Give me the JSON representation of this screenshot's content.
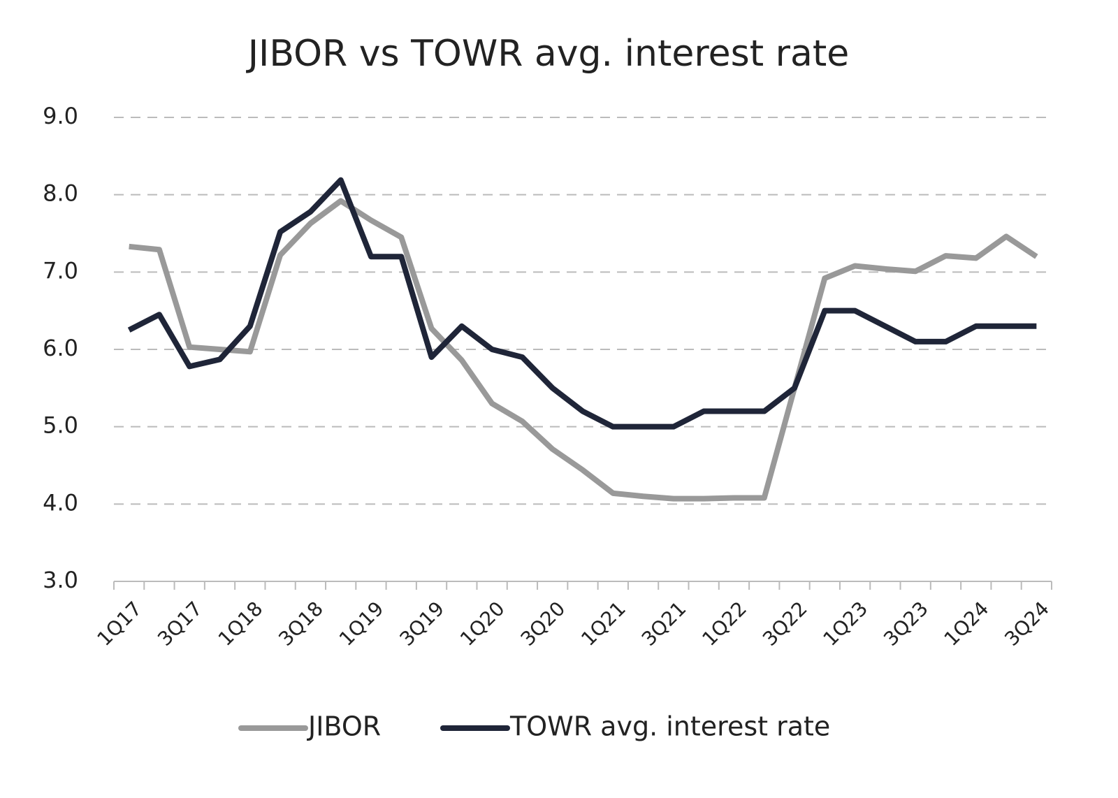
{
  "chart_data": {
    "type": "line",
    "title": "JIBOR vs TOWR avg. interest rate",
    "categories": [
      "1Q17",
      null,
      "3Q17",
      null,
      "1Q18",
      null,
      "3Q18",
      null,
      "1Q19",
      null,
      "3Q19",
      null,
      "1Q20",
      null,
      "3Q20",
      null,
      "1Q21",
      null,
      "3Q21",
      null,
      "1Q22",
      null,
      "3Q22",
      null,
      "1Q23",
      null,
      "3Q23",
      null,
      "1Q24",
      null,
      "3Q24"
    ],
    "series": [
      {
        "name": "JIBOR",
        "color": "#999999",
        "values": [
          7.33,
          7.29,
          6.03,
          6.0,
          5.97,
          7.22,
          7.63,
          7.92,
          7.67,
          7.45,
          6.27,
          5.86,
          5.3,
          5.07,
          4.71,
          4.44,
          4.14,
          4.1,
          4.07,
          4.07,
          4.08,
          4.08,
          5.5,
          6.92,
          7.08,
          7.04,
          7.01,
          7.21,
          7.18,
          7.46,
          7.2
        ]
      },
      {
        "name": "TOWR avg. interest rate",
        "color": "#1f2538",
        "values": [
          6.25,
          6.45,
          5.78,
          5.87,
          6.3,
          7.52,
          7.78,
          8.19,
          7.2,
          7.2,
          5.9,
          6.3,
          6.0,
          5.9,
          5.5,
          5.2,
          5.0,
          5.0,
          5.0,
          5.2,
          5.2,
          5.2,
          5.5,
          6.5,
          6.5,
          6.3,
          6.1,
          6.1,
          6.3,
          6.3,
          6.3
        ]
      }
    ],
    "ylim": [
      3,
      9
    ],
    "yticks": [
      {
        "value": 3,
        "label": "3.0"
      },
      {
        "value": 4,
        "label": "4.0"
      },
      {
        "value": 5,
        "label": "5.0"
      },
      {
        "value": 6,
        "label": "6.0"
      },
      {
        "value": 7,
        "label": "7.0"
      },
      {
        "value": 8,
        "label": "8.0"
      },
      {
        "value": 9,
        "label": "9.0"
      }
    ],
    "grid": true,
    "legend": "bottom"
  }
}
